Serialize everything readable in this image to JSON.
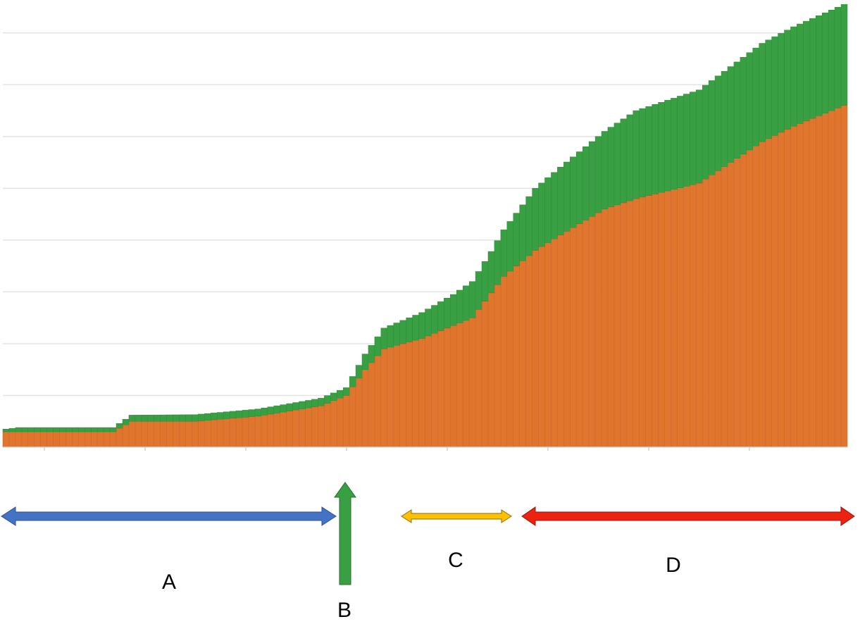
{
  "chart_data": {
    "type": "bar",
    "stacked": true,
    "bar_count": 134,
    "ylim": [
      0,
      85
    ],
    "grid": "horizontal",
    "y_gridlines": [
      10,
      20,
      30,
      40,
      50,
      60,
      70,
      80
    ],
    "x_ticks_count": 8,
    "series": [
      {
        "color": "#e0752e",
        "profile": [
          [
            0,
            3
          ],
          [
            17,
            3
          ],
          [
            20,
            5
          ],
          [
            30,
            5
          ],
          [
            40,
            6
          ],
          [
            50,
            8
          ],
          [
            54,
            10
          ],
          [
            57,
            15
          ],
          [
            60,
            19
          ],
          [
            66,
            21
          ],
          [
            70,
            23
          ],
          [
            74,
            25
          ],
          [
            79,
            33
          ],
          [
            84,
            38
          ],
          [
            88,
            41
          ],
          [
            95,
            46
          ],
          [
            100,
            48
          ],
          [
            110,
            51
          ],
          [
            115,
            55
          ],
          [
            120,
            59
          ],
          [
            125,
            62
          ],
          [
            133,
            66
          ]
        ]
      },
      {
        "color": "#38a043",
        "profile": [
          [
            0,
            0.5
          ],
          [
            2,
            0.8
          ],
          [
            17,
            0.8
          ],
          [
            20,
            1.2
          ],
          [
            54,
            1.5
          ],
          [
            57,
            3
          ],
          [
            60,
            4
          ],
          [
            66,
            5
          ],
          [
            71,
            6
          ],
          [
            77,
            8
          ],
          [
            79,
            9
          ],
          [
            84,
            12
          ],
          [
            95,
            15
          ],
          [
            100,
            17
          ],
          [
            110,
            18
          ],
          [
            120,
            19
          ],
          [
            133,
            19.5
          ]
        ]
      }
    ]
  },
  "annotations": [
    {
      "label": "A",
      "color": "#4472c4"
    },
    {
      "label": "B",
      "color": "#38a043"
    },
    {
      "label": "C",
      "color": "#ffc000"
    },
    {
      "label": "D",
      "color": "#ee2211"
    }
  ]
}
